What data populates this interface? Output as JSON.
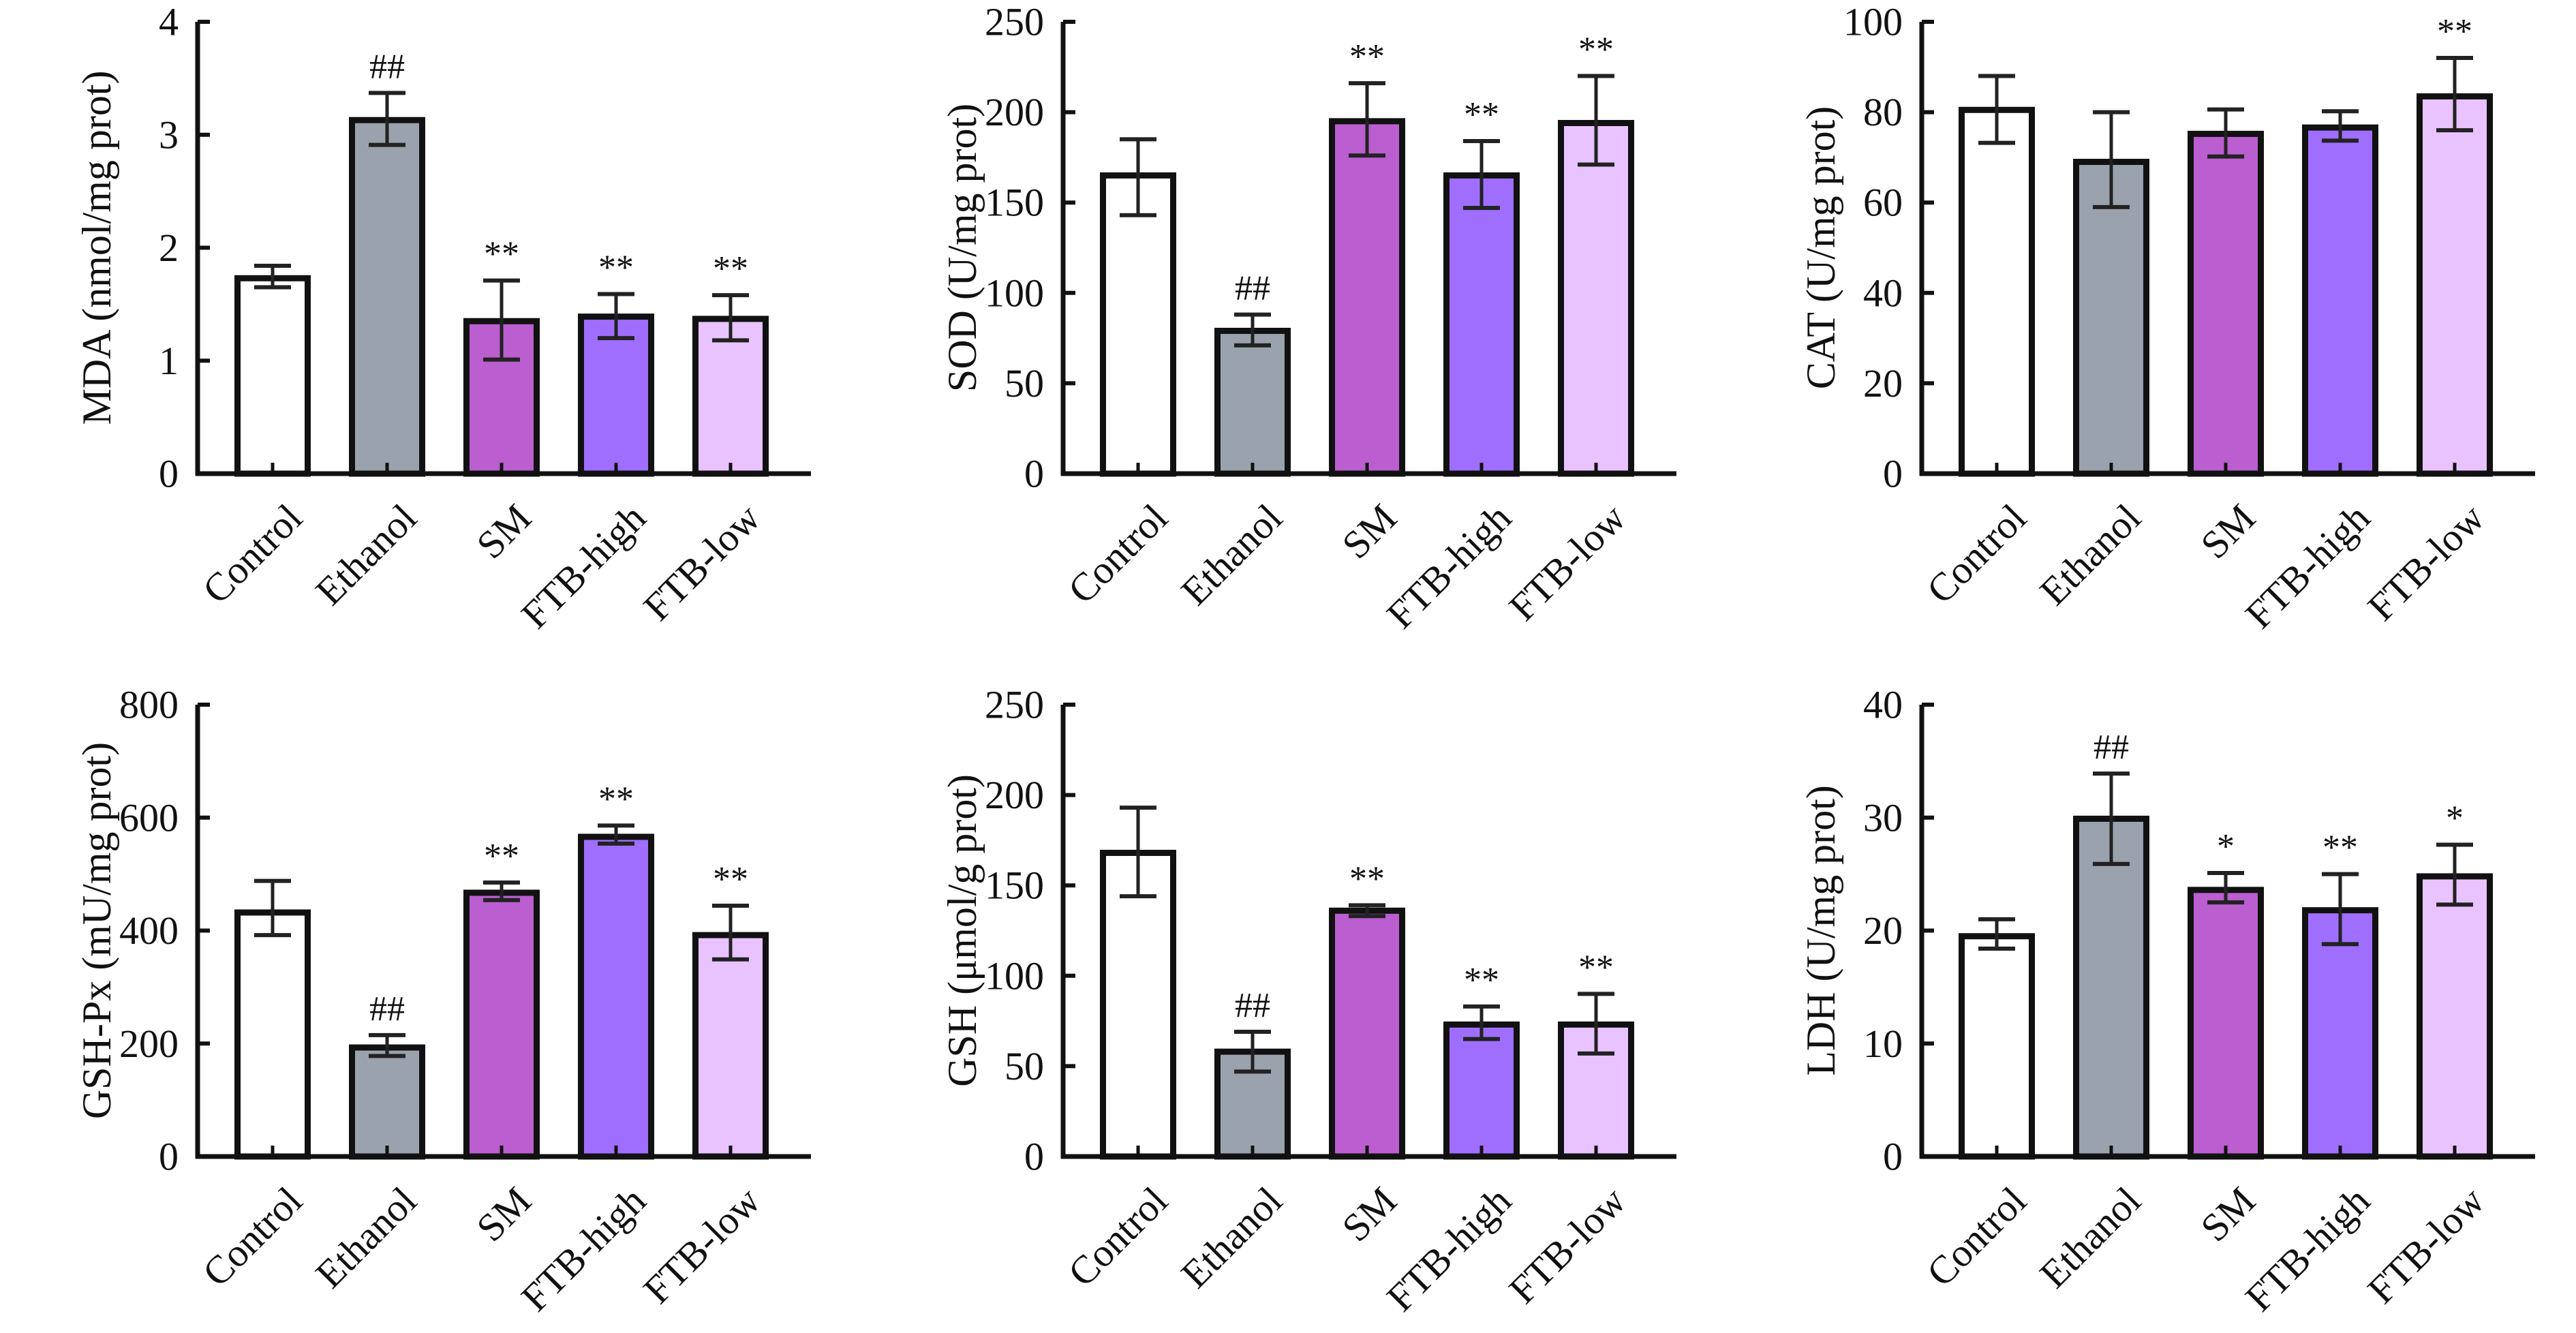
{
  "figure": {
    "categories": [
      "Control",
      "Ethanol",
      "SM",
      "FTB-high",
      "FTB-low"
    ],
    "bar_colors": [
      "#ffffff",
      "#9aa3ad",
      "#ba5ed0",
      "#a06eff",
      "#e8c3ff"
    ],
    "outline_color": "#111111"
  },
  "chart_data": [
    {
      "type": "bar",
      "title": "",
      "xlabel": "",
      "ylabel": "MDA (nmol/mg prot)",
      "ylim": [
        0,
        4
      ],
      "yticks": [
        "0",
        "1",
        "2",
        "3",
        "4"
      ],
      "categories": [
        "Control",
        "Ethanol",
        "SM",
        "FTB-high",
        "FTB-low"
      ],
      "values": [
        1.73,
        3.13,
        1.35,
        1.39,
        1.37
      ],
      "error_upper": [
        1.84,
        3.37,
        1.71,
        1.59,
        1.58
      ],
      "error_lower": [
        1.65,
        2.91,
        1.01,
        1.2,
        1.18
      ],
      "annotations": [
        "",
        "##",
        "**",
        "**",
        "**"
      ],
      "grid": false,
      "legend": "none"
    },
    {
      "type": "bar",
      "title": "",
      "xlabel": "",
      "ylabel": "SOD (U/mg prot)",
      "ylim": [
        0,
        250
      ],
      "yticks": [
        "0",
        "50",
        "100",
        "150",
        "200",
        "250"
      ],
      "categories": [
        "Control",
        "Ethanol",
        "SM",
        "FTB-high",
        "FTB-low"
      ],
      "values": [
        165,
        79,
        195,
        165,
        194
      ],
      "error_upper": [
        185,
        88,
        216,
        184,
        220
      ],
      "error_lower": [
        143,
        71,
        176,
        147,
        171
      ],
      "annotations": [
        "",
        "##",
        "**",
        "**",
        "**"
      ],
      "grid": false,
      "legend": "none"
    },
    {
      "type": "bar",
      "title": "",
      "xlabel": "",
      "ylabel": "CAT (U/mg prot)",
      "ylim": [
        0,
        100
      ],
      "yticks": [
        "0",
        "20",
        "40",
        "60",
        "80",
        "100"
      ],
      "categories": [
        "Control",
        "Ethanol",
        "SM",
        "FTB-high",
        "FTB-low"
      ],
      "values": [
        80.5,
        69,
        75.2,
        76.6,
        83.5
      ],
      "error_upper": [
        88,
        80,
        80.6,
        80.2,
        92
      ],
      "error_lower": [
        73.2,
        59,
        70.2,
        73.7,
        76
      ],
      "annotations": [
        "",
        "",
        "",
        "",
        "**"
      ],
      "grid": false,
      "legend": "none"
    },
    {
      "type": "bar",
      "title": "",
      "xlabel": "",
      "ylabel": "GSH-Px (mU/mg prot)",
      "ylim": [
        0,
        800
      ],
      "yticks": [
        "0",
        "200",
        "400",
        "600",
        "800"
      ],
      "categories": [
        "Control",
        "Ethanol",
        "SM",
        "FTB-high",
        "FTB-low"
      ],
      "values": [
        432,
        193,
        467,
        566,
        392
      ],
      "error_upper": [
        488,
        215,
        485,
        586,
        444
      ],
      "error_lower": [
        392,
        178,
        454,
        554,
        349
      ],
      "annotations": [
        "",
        "##",
        "**",
        "**",
        "**"
      ],
      "grid": false,
      "legend": "none"
    },
    {
      "type": "bar",
      "title": "",
      "xlabel": "",
      "ylabel": "GSH (μmol/g prot)",
      "ylim": [
        0,
        250
      ],
      "yticks": [
        "0",
        "50",
        "100",
        "150",
        "200",
        "250"
      ],
      "categories": [
        "Control",
        "Ethanol",
        "SM",
        "FTB-high",
        "FTB-low"
      ],
      "values": [
        168,
        58,
        136,
        73,
        73
      ],
      "error_upper": [
        193,
        69,
        139,
        83,
        90
      ],
      "error_lower": [
        144,
        47,
        133,
        65,
        57
      ],
      "annotations": [
        "",
        "##",
        "**",
        "**",
        "**"
      ],
      "grid": false,
      "legend": "none"
    },
    {
      "type": "bar",
      "title": "",
      "xlabel": "",
      "ylabel": "LDH (U/mg prot)",
      "ylim": [
        0,
        40
      ],
      "yticks": [
        "0",
        "10",
        "20",
        "30",
        "40"
      ],
      "categories": [
        "Control",
        "Ethanol",
        "SM",
        "FTB-high",
        "FTB-low"
      ],
      "values": [
        19.5,
        29.9,
        23.6,
        21.8,
        24.8
      ],
      "error_upper": [
        21.0,
        33.9,
        25.1,
        25.0,
        27.6
      ],
      "error_lower": [
        18.4,
        25.9,
        22.5,
        18.8,
        22.3
      ],
      "annotations": [
        "",
        "##",
        "*",
        "**",
        "*"
      ],
      "grid": false,
      "legend": "none"
    }
  ]
}
